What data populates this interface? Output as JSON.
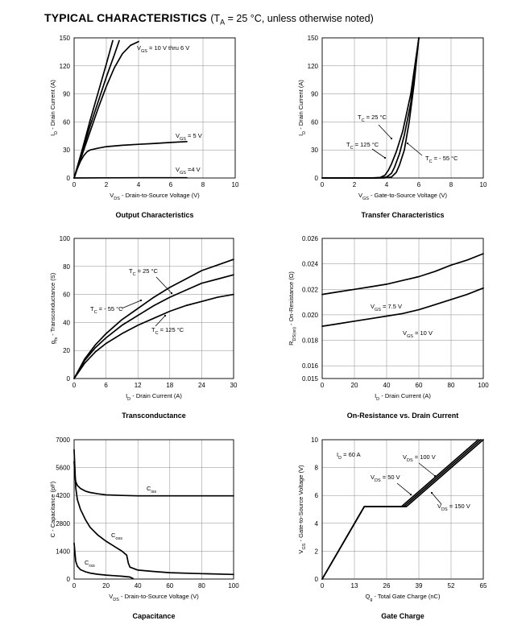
{
  "header": {
    "title": "TYPICAL CHARACTERISTICS",
    "cond_open": "(T",
    "cond_sub": "A",
    "cond_rest": " = 25 °C, unless otherwise noted)"
  },
  "chart_data": [
    {
      "type": "line",
      "title": "Output Characteristics",
      "xlabel": "V_DS - Drain-to-Source Voltage (V)",
      "ylabel": "I_D - Drain Current (A)",
      "xlim": [
        0,
        10
      ],
      "ylim": [
        0,
        150
      ],
      "xticks": [
        0,
        2,
        4,
        6,
        8,
        10
      ],
      "yticks": [
        0,
        30,
        60,
        90,
        120,
        150
      ],
      "grid": true,
      "series": [
        {
          "name": "V_GS = 10 V thru 6 V",
          "x": [
            0,
            0.5,
            1,
            1.5,
            2,
            2.5,
            3,
            3.5,
            4
          ],
          "y": [
            0,
            25,
            50,
            75,
            98,
            118,
            133,
            142,
            146
          ]
        },
        {
          "name": "",
          "x": [
            0,
            0.5,
            1,
            1.5,
            2,
            2.5,
            2.8
          ],
          "y": [
            0,
            28,
            56,
            82,
            108,
            132,
            147
          ]
        },
        {
          "name": "",
          "x": [
            0,
            0.5,
            1,
            1.5,
            2,
            2.4
          ],
          "y": [
            0,
            30,
            62,
            92,
            122,
            147
          ]
        },
        {
          "name": "V_GS = 5 V",
          "x": [
            0,
            0.2,
            0.4,
            0.6,
            0.8,
            1,
            1.5,
            2,
            3,
            4,
            5,
            6,
            7
          ],
          "y": [
            0,
            10,
            18,
            24,
            28,
            30,
            32,
            33.5,
            35,
            36,
            37,
            38,
            39
          ]
        },
        {
          "name": "V_GS = 4 V",
          "x": [
            0,
            2,
            4,
            6,
            7
          ],
          "y": [
            0,
            0.2,
            0.3,
            0.3,
            0.3
          ]
        }
      ],
      "annotations": [
        "V_GS = 10 V thru 6 V",
        "V_GS = 5 V",
        "V_GS = 4 V"
      ]
    },
    {
      "type": "line",
      "title": "Transfer Characteristics",
      "xlabel": "V_GS - Gate-to-Source Voltage (V)",
      "ylabel": "I_D - Drain Current (A)",
      "xlim": [
        0,
        10
      ],
      "ylim": [
        0,
        150
      ],
      "xticks": [
        0,
        2,
        4,
        6,
        8,
        10
      ],
      "yticks": [
        0,
        30,
        60,
        90,
        120,
        150
      ],
      "grid": true,
      "series": [
        {
          "name": "T_C = 125 °C",
          "x": [
            0,
            3,
            3.6,
            3.9,
            4.1,
            4.3,
            4.6,
            5,
            5.5,
            6
          ],
          "y": [
            0,
            0,
            0.5,
            3,
            8,
            15,
            28,
            50,
            90,
            150
          ]
        },
        {
          "name": "T_C = 25 °C",
          "x": [
            0,
            3.4,
            4,
            4.3,
            4.5,
            4.8,
            5.1,
            5.5,
            6
          ],
          "y": [
            0,
            0,
            1,
            5,
            12,
            26,
            46,
            80,
            150
          ]
        },
        {
          "name": "T_C = - 55 °C",
          "x": [
            0,
            3.8,
            4.3,
            4.6,
            4.8,
            5.1,
            5.4,
            5.7,
            6
          ],
          "y": [
            0,
            0,
            1,
            6,
            14,
            30,
            60,
            100,
            150
          ]
        }
      ],
      "annotations": [
        "T_C = 25 °C",
        "T_C = 125 °C",
        "T_C = - 55 °C"
      ]
    },
    {
      "type": "line",
      "title": "Transconductance",
      "xlabel": "I_D - Drain Current (A)",
      "ylabel": "g_fs - Transconductance (S)",
      "xlim": [
        0,
        30
      ],
      "ylim": [
        0,
        100
      ],
      "xticks": [
        0,
        6,
        12,
        18,
        24,
        30
      ],
      "yticks": [
        0,
        20,
        40,
        60,
        80,
        100
      ],
      "grid": true,
      "series": [
        {
          "name": "T_C = - 55 °C",
          "x": [
            0,
            2,
            4,
            6,
            9,
            12,
            15,
            18,
            21,
            24,
            27,
            30
          ],
          "y": [
            0,
            14,
            24,
            32,
            42,
            50,
            58,
            65,
            71,
            77,
            81,
            85
          ]
        },
        {
          "name": "T_C = 25 °C",
          "x": [
            0,
            2,
            4,
            6,
            9,
            12,
            15,
            18,
            21,
            24,
            27,
            30
          ],
          "y": [
            0,
            13,
            22,
            29,
            38,
            45,
            52,
            58,
            63,
            68,
            71,
            74
          ]
        },
        {
          "name": "T_C = 125 °C",
          "x": [
            0,
            2,
            4,
            6,
            9,
            12,
            15,
            18,
            21,
            24,
            27,
            30
          ],
          "y": [
            0,
            11,
            19,
            25,
            32,
            38,
            43,
            48,
            52,
            55,
            58,
            60
          ]
        }
      ],
      "annotations": [
        "T_C = 25 °C",
        "T_C = - 55 °C",
        "T_C = 125 °C"
      ]
    },
    {
      "type": "line",
      "title": "On-Resistance vs. Drain Current",
      "xlabel": "I_D - Drain Current (A)",
      "ylabel": "R_DS(on) - On-Resistance (Ω)",
      "xlim": [
        0,
        100
      ],
      "ylim": [
        0.015,
        0.026
      ],
      "xticks": [
        0,
        20,
        40,
        60,
        80,
        100
      ],
      "yticks": [
        0.015,
        0.016,
        0.018,
        0.02,
        0.022,
        0.024,
        0.026
      ],
      "grid": true,
      "series": [
        {
          "name": "V_GS = 7.5 V",
          "x": [
            0,
            10,
            20,
            30,
            40,
            50,
            60,
            70,
            80,
            90,
            100
          ],
          "y": [
            0.0216,
            0.0218,
            0.022,
            0.0222,
            0.0224,
            0.0227,
            0.023,
            0.0234,
            0.0239,
            0.0243,
            0.0248
          ]
        },
        {
          "name": "V_GS = 10 V",
          "x": [
            0,
            10,
            20,
            30,
            40,
            50,
            60,
            70,
            80,
            90,
            100
          ],
          "y": [
            0.0191,
            0.0193,
            0.0195,
            0.0197,
            0.0199,
            0.0201,
            0.0204,
            0.0208,
            0.0212,
            0.0216,
            0.0221
          ]
        }
      ],
      "annotations": [
        "V_GS = 7.5 V",
        "V_GS = 10 V"
      ]
    },
    {
      "type": "line",
      "title": "Capacitance",
      "xlabel": "V_DS - Drain-to-Source Voltage (V)",
      "ylabel": "C - Capacitance (pF)",
      "xlim": [
        0,
        100
      ],
      "ylim": [
        0,
        7000
      ],
      "xticks": [
        0,
        20,
        40,
        60,
        80,
        100
      ],
      "yticks": [
        0,
        1400,
        2800,
        4200,
        5600,
        7000
      ],
      "grid": true,
      "series": [
        {
          "name": "C_iss",
          "x": [
            0,
            0.5,
            1,
            2,
            4,
            7,
            10,
            15,
            20,
            30,
            40,
            60,
            80,
            100
          ],
          "y": [
            5900,
            5200,
            4900,
            4700,
            4550,
            4420,
            4350,
            4280,
            4230,
            4200,
            4180,
            4180,
            4180,
            4180
          ]
        },
        {
          "name": "C_oss",
          "x": [
            0,
            1,
            2,
            4,
            7,
            10,
            15,
            20,
            25,
            30,
            33,
            34,
            35,
            40,
            50,
            60,
            80,
            100
          ],
          "y": [
            6500,
            4600,
            4000,
            3500,
            3000,
            2600,
            2200,
            1900,
            1650,
            1400,
            1200,
            800,
            600,
            450,
            380,
            320,
            270,
            230
          ]
        },
        {
          "name": "C_rss",
          "x": [
            0,
            1,
            2,
            4,
            7,
            10,
            15,
            20,
            25,
            30,
            35,
            37
          ],
          "y": [
            1800,
            900,
            650,
            470,
            370,
            300,
            240,
            200,
            170,
            140,
            100,
            20
          ]
        }
      ],
      "annotations": [
        "C_iss",
        "C_oss",
        "C_rss"
      ]
    },
    {
      "type": "line",
      "title": "Gate Charge",
      "xlabel": "Q_g - Total Gate Charge (nC)",
      "ylabel": "V_GS - Gate-to-Source Voltage (V)",
      "xlim": [
        0,
        65
      ],
      "ylim": [
        0,
        10
      ],
      "xticks": [
        0,
        13,
        26,
        39,
        52,
        65
      ],
      "yticks": [
        0,
        2,
        4,
        6,
        8,
        10
      ],
      "grid": true,
      "series": [
        {
          "name": "V_DS = 50 V",
          "x": [
            0,
            17,
            32,
            63
          ],
          "y": [
            0,
            5.2,
            5.2,
            10
          ]
        },
        {
          "name": "V_DS = 100 V",
          "x": [
            0,
            17,
            33,
            64
          ],
          "y": [
            0,
            5.2,
            5.2,
            10
          ]
        },
        {
          "name": "V_DS = 150 V",
          "x": [
            0,
            17,
            34,
            65
          ],
          "y": [
            0,
            5.2,
            5.2,
            10
          ]
        }
      ],
      "annotations": [
        "I_D = 60 A",
        "V_DS = 100 V",
        "V_DS = 50 V",
        "V_DS = 150 V"
      ]
    }
  ],
  "labels": {
    "c1": {
      "y": {
        "main": "I",
        "sub": "D",
        "rest": " - Drain Current (A)"
      },
      "x": {
        "main": "V",
        "sub": "DS",
        "rest": " - Drain-to-Source Voltage (V)"
      },
      "caption": "Output Characteristics",
      "a1": {
        "main": "V",
        "sub": "GS",
        "rest": " = 10 V thru 6 V"
      },
      "a2": {
        "main": "V",
        "sub": "GS",
        "rest": " = 5 V"
      },
      "a3": {
        "main": "V",
        "sub": "GS",
        "rest": " =4 V"
      }
    },
    "c2": {
      "y": {
        "main": "I",
        "sub": "D",
        "rest": " - Drain Current (A)"
      },
      "x": {
        "main": "V",
        "sub": "GS",
        "rest": " - Gate-to-Source Voltage (V)"
      },
      "caption": "Transfer Characteristics",
      "a1": {
        "main": "T",
        "sub": "C",
        "rest": " = 25 °C"
      },
      "a2": {
        "main": "T",
        "sub": "C",
        "rest": " = 125 °C"
      },
      "a3": {
        "main": "T",
        "sub": "C",
        "rest": " = - 55 °C"
      }
    },
    "c3": {
      "y": {
        "main": "g",
        "sub": "fs",
        "rest": " - Transconductance (S)"
      },
      "x": {
        "main": "I",
        "sub": "D",
        "rest": " - Drain Current (A)"
      },
      "caption": "Transconductance",
      "a1": {
        "main": "T",
        "sub": "C",
        "rest": " = 25 °C"
      },
      "a2": {
        "main": "T",
        "sub": "C",
        "rest": " = - 55 °C"
      },
      "a3": {
        "main": "T",
        "sub": "C",
        "rest": " = 125 °C"
      }
    },
    "c4": {
      "y": {
        "main": "R",
        "sub": "DS(on)",
        "rest": " - On-Resistance (Ω)"
      },
      "x": {
        "main": "I",
        "sub": "D",
        "rest": " - Drain Current (A)"
      },
      "caption": "On-Resistance vs. Drain Current",
      "a1": {
        "main": "V",
        "sub": "GS",
        "rest": " = 7.5 V"
      },
      "a2": {
        "main": "V",
        "sub": "GS",
        "rest": " = 10 V"
      }
    },
    "c5": {
      "y": {
        "main": "C - Capacitance (pF)",
        "sub": "",
        "rest": ""
      },
      "x": {
        "main": "V",
        "sub": "DS",
        "rest": " - Drain-to-Source Voltage (V)"
      },
      "caption": "Capacitance",
      "a1": {
        "main": "C",
        "sub": "iss",
        "rest": ""
      },
      "a2": {
        "main": "C",
        "sub": "oss",
        "rest": ""
      },
      "a3": {
        "main": "C",
        "sub": "rss",
        "rest": ""
      }
    },
    "c6": {
      "y": {
        "main": "V",
        "sub": "GS",
        "rest": " - Gate-to-Source Voltage (V)"
      },
      "x": {
        "main": "Q",
        "sub": "g",
        "rest": " - Total Gate Charge (nC)"
      },
      "caption": "Gate Charge",
      "a1": {
        "main": "I",
        "sub": "D",
        "rest": " = 60 A"
      },
      "a2": {
        "main": "V",
        "sub": "DS",
        "rest": " = 100 V"
      },
      "a3": {
        "main": "V",
        "sub": "DS",
        "rest": " = 50 V"
      },
      "a4": {
        "main": "V",
        "sub": "DS",
        "rest": " = 150 V"
      }
    }
  },
  "yticks_text": {
    "c1": [
      "0",
      "30",
      "60",
      "90",
      "120",
      "150"
    ],
    "c2": [
      "0",
      "30",
      "60",
      "90",
      "120",
      "150"
    ],
    "c3": [
      "0",
      "20",
      "40",
      "60",
      "80",
      "100"
    ],
    "c4": [
      "0.015",
      "0.016",
      "0.018",
      "0.020",
      "0.022",
      "0.024",
      "0.026"
    ],
    "c5": [
      "0",
      "1400",
      "2800",
      "4200",
      "5600",
      "7000"
    ],
    "c6": [
      "0",
      "2",
      "4",
      "6",
      "8",
      "10"
    ]
  },
  "xticks_text": {
    "c1": [
      "0",
      "2",
      "4",
      "6",
      "8",
      "10"
    ],
    "c2": [
      "0",
      "2",
      "4",
      "6",
      "8",
      "10"
    ],
    "c3": [
      "0",
      "6",
      "12",
      "18",
      "24",
      "30"
    ],
    "c4": [
      "0",
      "20",
      "40",
      "60",
      "80",
      "100"
    ],
    "c5": [
      "0",
      "20",
      "40",
      "60",
      "80",
      "100"
    ],
    "c6": [
      "0",
      "13",
      "26",
      "39",
      "52",
      "65"
    ]
  }
}
